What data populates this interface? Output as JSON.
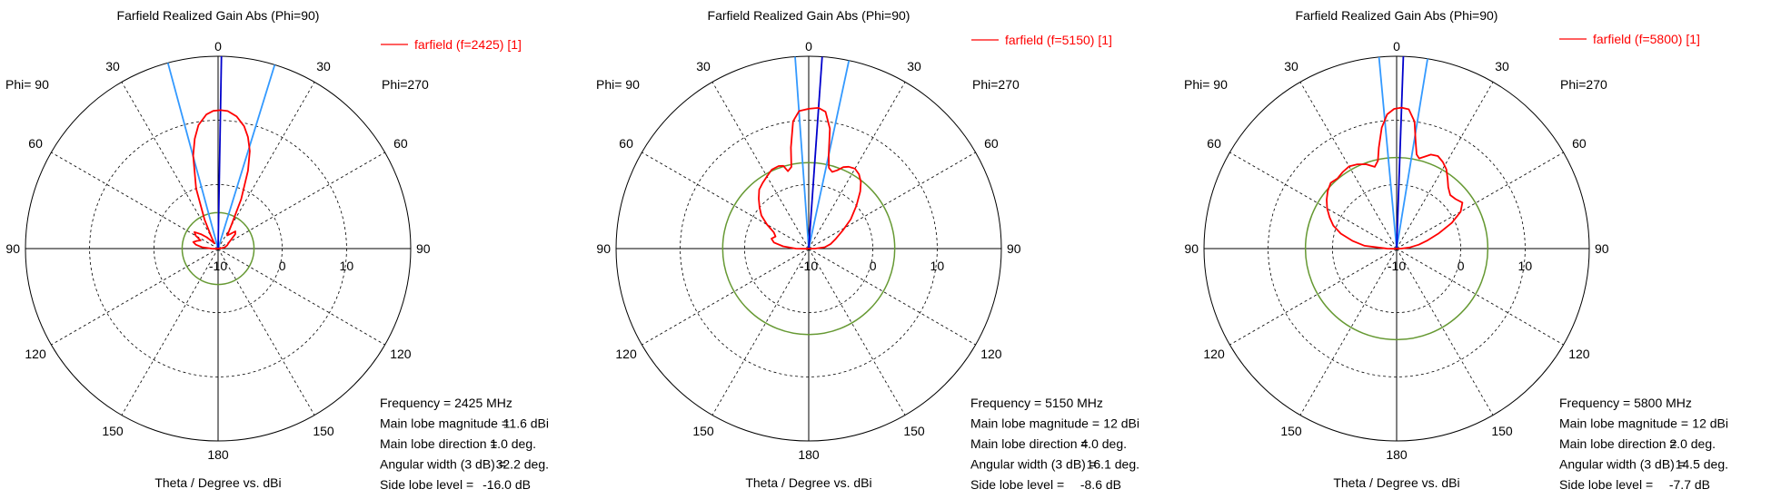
{
  "colors": {
    "main_trace": "#ff0000",
    "half_power_lines": "#3399ff",
    "main_lobe_direction": "#0000cc",
    "side_lobe_circle": "#669933",
    "grid": "#000000"
  },
  "chart_data": [
    {
      "type": "polar",
      "title": "Farfield Realized Gain Abs (Phi=90)",
      "legend": "farfield (f=2425) [1]",
      "left_label": "Phi= 90",
      "right_label": "Phi=270",
      "xlabel": "Theta / Degree vs. dBi",
      "angle_ticks": [
        {
          "deg": 0,
          "label": "0"
        },
        {
          "deg": 30,
          "label": "30"
        },
        {
          "deg": 60,
          "label": "60"
        },
        {
          "deg": 90,
          "label": "90"
        },
        {
          "deg": 120,
          "label": "120"
        },
        {
          "deg": 150,
          "label": "150"
        },
        {
          "deg": 180,
          "label": "180"
        },
        {
          "deg": -150,
          "label": "150"
        },
        {
          "deg": -120,
          "label": "120"
        },
        {
          "deg": -90,
          "label": "90"
        },
        {
          "deg": -60,
          "label": "60"
        },
        {
          "deg": -30,
          "label": "30"
        }
      ],
      "radial_ticks": [
        {
          "value": -10,
          "label": "-10"
        },
        {
          "value": 0,
          "label": "0"
        },
        {
          "value": 10,
          "label": "10"
        }
      ],
      "rlim": [
        -10,
        20
      ],
      "info": [
        {
          "label": "Frequency = 2425 MHz",
          "value": ""
        },
        {
          "label": "Main lobe magnitude =",
          "value": "11.6 dBi"
        },
        {
          "label": "Main lobe direction =",
          "value": "1.0 deg."
        },
        {
          "label": "Angular width (3 dB) =",
          "value": "32.2 deg."
        },
        {
          "label": "Side lobe level =",
          "value": "-16.0 dB"
        }
      ],
      "main_lobe_direction_deg": 1.0,
      "beamwidth_deg": 32.2,
      "side_lobe_circle_dbi": -4.4,
      "series": [
        {
          "name": "farfield (f=2425) [1]",
          "points": [
            [
              -180,
              -10
            ],
            [
              -150,
              -10
            ],
            [
              -120,
              -10
            ],
            [
              -100,
              -9.8
            ],
            [
              -90,
              -9
            ],
            [
              -85,
              -7.5
            ],
            [
              -80,
              -6.5
            ],
            [
              -75,
              -6
            ],
            [
              -70,
              -6.5
            ],
            [
              -65,
              -7
            ],
            [
              -60,
              -6
            ],
            [
              -55,
              -5.5
            ],
            [
              -50,
              -6.5
            ],
            [
              -45,
              -7.5
            ],
            [
              -40,
              -8.5
            ],
            [
              -35,
              -9
            ],
            [
              -30,
              -8
            ],
            [
              -25,
              -5
            ],
            [
              -20,
              0
            ],
            [
              -15,
              5
            ],
            [
              -12,
              7.5
            ],
            [
              -9,
              9.5
            ],
            [
              -5,
              11
            ],
            [
              -2,
              11.5
            ],
            [
              1,
              11.6
            ],
            [
              4,
              11.5
            ],
            [
              8,
              10.8
            ],
            [
              12,
              9.5
            ],
            [
              15,
              8
            ],
            [
              18,
              6
            ],
            [
              21,
              3
            ],
            [
              25,
              -1.5
            ],
            [
              30,
              -6
            ],
            [
              35,
              -7.5
            ],
            [
              40,
              -7
            ],
            [
              45,
              -6.2
            ],
            [
              50,
              -6.5
            ],
            [
              55,
              -7.5
            ],
            [
              60,
              -8
            ],
            [
              70,
              -8.5
            ],
            [
              80,
              -9
            ],
            [
              90,
              -9.8
            ],
            [
              100,
              -10
            ],
            [
              120,
              -10
            ],
            [
              150,
              -10
            ],
            [
              180,
              -10
            ]
          ]
        }
      ]
    },
    {
      "type": "polar",
      "title": "Farfield Realized Gain Abs (Phi=90)",
      "legend": "farfield (f=5150) [1]",
      "left_label": "Phi= 90",
      "right_label": "Phi=270",
      "xlabel": "Theta / Degree vs. dBi",
      "angle_ticks": [
        {
          "deg": 0,
          "label": "0"
        },
        {
          "deg": 30,
          "label": "30"
        },
        {
          "deg": 60,
          "label": "60"
        },
        {
          "deg": 90,
          "label": "90"
        },
        {
          "deg": 120,
          "label": "120"
        },
        {
          "deg": 150,
          "label": "150"
        },
        {
          "deg": 180,
          "label": "180"
        },
        {
          "deg": -150,
          "label": "150"
        },
        {
          "deg": -120,
          "label": "120"
        },
        {
          "deg": -90,
          "label": "90"
        },
        {
          "deg": -60,
          "label": "60"
        },
        {
          "deg": -30,
          "label": "30"
        }
      ],
      "radial_ticks": [
        {
          "value": -10,
          "label": "-10"
        },
        {
          "value": 0,
          "label": "0"
        },
        {
          "value": 10,
          "label": "10"
        }
      ],
      "rlim": [
        -10,
        20
      ],
      "info": [
        {
          "label": "Frequency = 5150 MHz",
          "value": ""
        },
        {
          "label": "Main lobe magnitude =",
          "value": "12 dBi"
        },
        {
          "label": "Main lobe direction =",
          "value": "4.0 deg."
        },
        {
          "label": "Angular width (3 dB) =",
          "value": "16.1 deg."
        },
        {
          "label": "Side lobe level =",
          "value": "-8.6 dB"
        }
      ],
      "main_lobe_direction_deg": 4.0,
      "beamwidth_deg": 16.1,
      "side_lobe_circle_dbi": 3.4,
      "series": [
        {
          "name": "farfield (f=5150) [1]",
          "points": [
            [
              -180,
              -10
            ],
            [
              -120,
              -10
            ],
            [
              -100,
              -9.8
            ],
            [
              -90,
              -8
            ],
            [
              -85,
              -6
            ],
            [
              -80,
              -4.5
            ],
            [
              -75,
              -4
            ],
            [
              -70,
              -4.5
            ],
            [
              -65,
              -4
            ],
            [
              -60,
              -2.5
            ],
            [
              -55,
              -1
            ],
            [
              -50,
              0
            ],
            [
              -45,
              1
            ],
            [
              -40,
              2
            ],
            [
              -35,
              2.5
            ],
            [
              -30,
              3
            ],
            [
              -25,
              3.6
            ],
            [
              -20,
              3.7
            ],
            [
              -17,
              3.5
            ],
            [
              -15,
              2.5
            ],
            [
              -12,
              3
            ],
            [
              -10,
              6
            ],
            [
              -7,
              10
            ],
            [
              -4,
              11.5
            ],
            [
              0,
              11.8
            ],
            [
              4,
              12
            ],
            [
              7,
              11.5
            ],
            [
              10,
              9
            ],
            [
              12,
              5
            ],
            [
              14,
              3
            ],
            [
              17,
              2.5
            ],
            [
              20,
              3
            ],
            [
              23,
              3.8
            ],
            [
              26,
              4.2
            ],
            [
              30,
              4.4
            ],
            [
              34,
              4
            ],
            [
              38,
              3.2
            ],
            [
              42,
              2
            ],
            [
              48,
              0
            ],
            [
              55,
              -2
            ],
            [
              62,
              -4
            ],
            [
              70,
              -5.5
            ],
            [
              78,
              -6.5
            ],
            [
              85,
              -7.5
            ],
            [
              90,
              -9
            ],
            [
              100,
              -10
            ],
            [
              120,
              -10
            ],
            [
              180,
              -10
            ]
          ]
        }
      ]
    },
    {
      "type": "polar",
      "title": "Farfield Realized Gain Abs (Phi=90)",
      "legend": "farfield (f=5800) [1]",
      "left_label": "Phi= 90",
      "right_label": "Phi=270",
      "xlabel": "Theta / Degree vs. dBi",
      "angle_ticks": [
        {
          "deg": 0,
          "label": "0"
        },
        {
          "deg": 30,
          "label": "30"
        },
        {
          "deg": 60,
          "label": "60"
        },
        {
          "deg": 90,
          "label": "90"
        },
        {
          "deg": 120,
          "label": "120"
        },
        {
          "deg": 150,
          "label": "150"
        },
        {
          "deg": 180,
          "label": "180"
        },
        {
          "deg": -150,
          "label": "150"
        },
        {
          "deg": -120,
          "label": "120"
        },
        {
          "deg": -90,
          "label": "90"
        },
        {
          "deg": -60,
          "label": "60"
        },
        {
          "deg": -30,
          "label": "30"
        }
      ],
      "radial_ticks": [
        {
          "value": -10,
          "label": "-10"
        },
        {
          "value": 0,
          "label": "0"
        },
        {
          "value": 10,
          "label": "10"
        }
      ],
      "rlim": [
        -10,
        20
      ],
      "info": [
        {
          "label": "Frequency = 5800 MHz",
          "value": ""
        },
        {
          "label": "Main lobe magnitude =",
          "value": "12 dBi"
        },
        {
          "label": "Main lobe direction =",
          "value": "2.0 deg."
        },
        {
          "label": "Angular width (3 dB) =",
          "value": "14.5 deg."
        },
        {
          "label": "Side lobe level =",
          "value": "-7.7 dB"
        }
      ],
      "main_lobe_direction_deg": 2.0,
      "beamwidth_deg": 14.5,
      "side_lobe_circle_dbi": 4.2,
      "series": [
        {
          "name": "farfield (f=5800) [1]",
          "points": [
            [
              -180,
              -10
            ],
            [
              -120,
              -10
            ],
            [
              -100,
              -9.8
            ],
            [
              -90,
              -8.5
            ],
            [
              -85,
              -5
            ],
            [
              -80,
              -3
            ],
            [
              -75,
              -1
            ],
            [
              -70,
              0.5
            ],
            [
              -65,
              1.5
            ],
            [
              -60,
              2.5
            ],
            [
              -55,
              3.3
            ],
            [
              -50,
              4
            ],
            [
              -45,
              4.5
            ],
            [
              -40,
              4.3
            ],
            [
              -35,
              4.6
            ],
            [
              -30,
              4.8
            ],
            [
              -25,
              4.5
            ],
            [
              -20,
              4
            ],
            [
              -15,
              3.2
            ],
            [
              -12,
              4
            ],
            [
              -10,
              6
            ],
            [
              -7,
              9
            ],
            [
              -4,
              11
            ],
            [
              -1,
              11.8
            ],
            [
              2,
              12
            ],
            [
              5,
              11.8
            ],
            [
              8,
              10
            ],
            [
              10,
              7
            ],
            [
              12,
              5
            ],
            [
              14,
              4.5
            ],
            [
              17,
              5
            ],
            [
              20,
              5.6
            ],
            [
              24,
              5.8
            ],
            [
              28,
              5.3
            ],
            [
              32,
              4.6
            ],
            [
              36,
              3.5
            ],
            [
              40,
              2.5
            ],
            [
              45,
              1.8
            ],
            [
              50,
              2
            ],
            [
              55,
              2.5
            ],
            [
              60,
              1.5
            ],
            [
              65,
              -0.5
            ],
            [
              70,
              -3
            ],
            [
              75,
              -5
            ],
            [
              80,
              -6.5
            ],
            [
              85,
              -8
            ],
            [
              90,
              -9.3
            ],
            [
              100,
              -10
            ],
            [
              120,
              -10
            ],
            [
              180,
              -10
            ]
          ]
        }
      ]
    }
  ]
}
